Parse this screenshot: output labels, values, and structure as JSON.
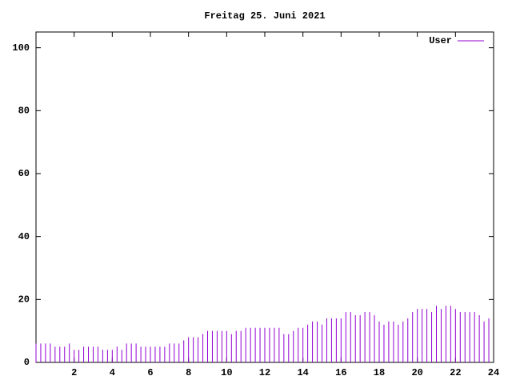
{
  "chart_data": {
    "type": "impulses",
    "title": "Freitag 25. Juni 2021",
    "x": [
      0,
      0.25,
      0.5,
      0.75,
      1,
      1.25,
      1.5,
      1.75,
      2,
      2.25,
      2.5,
      2.75,
      3,
      3.25,
      3.5,
      3.75,
      4,
      4.25,
      4.5,
      4.75,
      5,
      5.25,
      5.5,
      5.75,
      6,
      6.25,
      6.5,
      6.75,
      7,
      7.25,
      7.5,
      7.75,
      8,
      8.25,
      8.5,
      8.75,
      9,
      9.25,
      9.5,
      9.75,
      10,
      10.25,
      10.5,
      10.75,
      11,
      11.25,
      11.5,
      11.75,
      12,
      12.25,
      12.5,
      12.75,
      13,
      13.25,
      13.5,
      13.75,
      14,
      14.25,
      14.5,
      14.75,
      15,
      15.25,
      15.5,
      15.75,
      16,
      16.25,
      16.5,
      16.75,
      17,
      17.25,
      17.5,
      17.75,
      18,
      18.25,
      18.5,
      18.75,
      19,
      19.25,
      19.5,
      19.75,
      20,
      20.25,
      20.5,
      20.75,
      21,
      21.25,
      21.5,
      21.75,
      22,
      22.25,
      22.5,
      22.75,
      23,
      23.25,
      23.5,
      23.75
    ],
    "series": [
      {
        "name": "User",
        "color": "#9400d3",
        "values": [
          6,
          6,
          6,
          6,
          5,
          5,
          5,
          6,
          4,
          4,
          5,
          5,
          5,
          5,
          4,
          4,
          4,
          5,
          4,
          6,
          6,
          6,
          5,
          5,
          5,
          5,
          5,
          5,
          6,
          6,
          6,
          7,
          8,
          8,
          8,
          9,
          10,
          10,
          10,
          10,
          10,
          9,
          10,
          10,
          11,
          11,
          11,
          11,
          11,
          11,
          11,
          11,
          9,
          9,
          10,
          11,
          11,
          12,
          13,
          13,
          12,
          14,
          14,
          14,
          14,
          16,
          16,
          15,
          15,
          16,
          16,
          15,
          13,
          12,
          13,
          13,
          12,
          13,
          14,
          16,
          17,
          17,
          17,
          16,
          18,
          17,
          18,
          18,
          17,
          16,
          16,
          16,
          16,
          15,
          13,
          14
        ]
      }
    ],
    "xlim": [
      0,
      24
    ],
    "xticks": [
      2,
      4,
      6,
      8,
      10,
      12,
      14,
      16,
      18,
      20,
      22,
      24
    ],
    "ylim": [
      0,
      105
    ],
    "yticks": [
      0,
      20,
      40,
      60,
      80,
      100
    ],
    "legend": "top-right"
  }
}
